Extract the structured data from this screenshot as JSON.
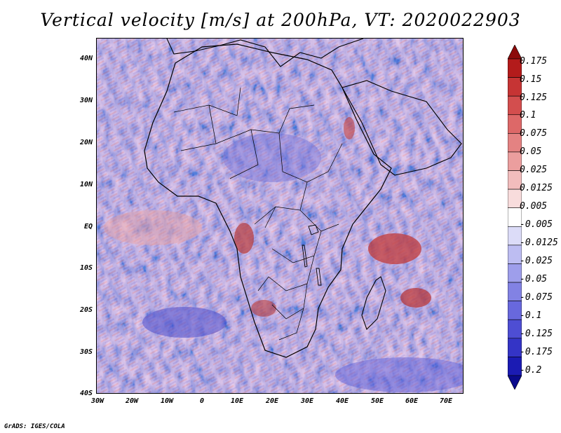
{
  "title": "Vertical velocity [m/s] at 200hPa, VT: 2020022903",
  "footer": "GrADS: IGES/COLA",
  "map": {
    "region": "Africa",
    "field": "Vertical velocity at 200hPa",
    "lat_labels": [
      "40N",
      "30N",
      "20N",
      "10N",
      "EQ",
      "10S",
      "20S",
      "30S",
      "40S"
    ],
    "lon_labels": [
      "30W",
      "20W",
      "10W",
      "0",
      "10E",
      "20E",
      "30E",
      "40E",
      "50E",
      "60E",
      "70E"
    ]
  },
  "colorbar": {
    "labels": [
      "0.175",
      "0.15",
      "0.125",
      "0.1",
      "0.075",
      "0.05",
      "0.025",
      "0.0125",
      "0.005",
      "-0.005",
      "-0.0125",
      "-0.025",
      "-0.05",
      "-0.075",
      "-0.1",
      "-0.125",
      "-0.175",
      "-0.2"
    ],
    "colors": [
      "#8c0a0a",
      "#b31b1b",
      "#c63434",
      "#d34e4e",
      "#dd6868",
      "#e48282",
      "#eb9e9e",
      "#f2bdbd",
      "#f8dcdc",
      "#ffffff",
      "#dcdcf8",
      "#bdbdf2",
      "#9e9eeb",
      "#8282e4",
      "#6868dd",
      "#4e4ed3",
      "#3434c6",
      "#1b1bb3",
      "#0a0a8c"
    ]
  }
}
